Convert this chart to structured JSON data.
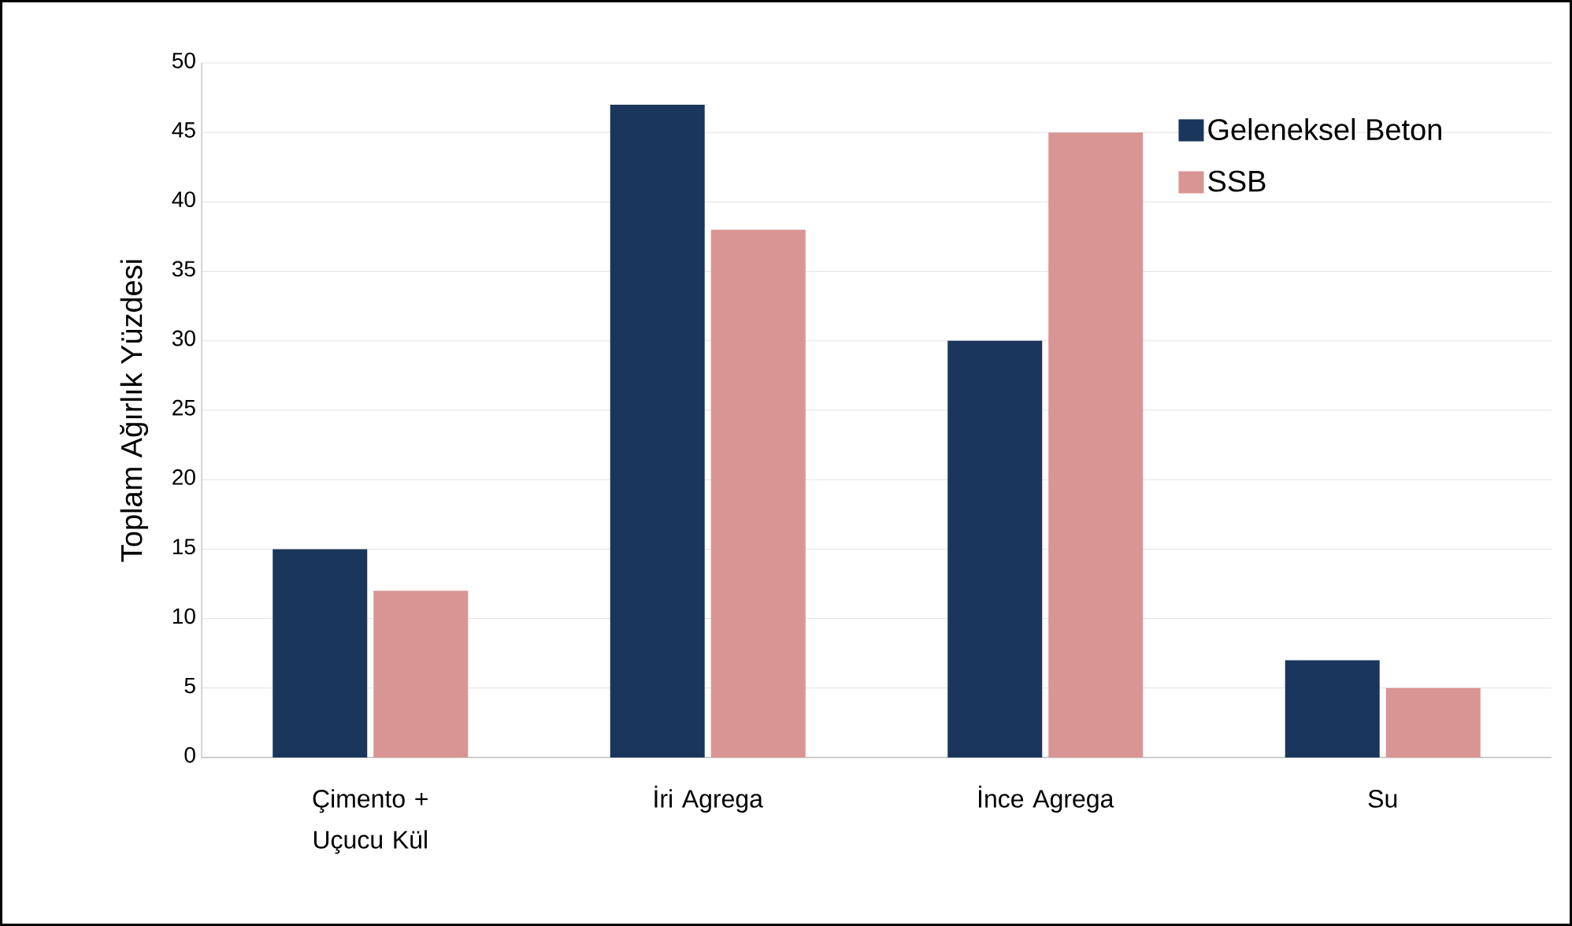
{
  "chart_data": {
    "type": "bar",
    "ylabel": "Toplam Ağırlık Yüzdesi",
    "categories": [
      "Çimento + Uçucu Kül",
      "İri Agrega",
      "İnce Agrega",
      "Su"
    ],
    "series": [
      {
        "name": "Geleneksel Beton",
        "color": "#1b365d",
        "values": [
          15,
          47,
          30,
          7
        ]
      },
      {
        "name": "SSB",
        "color": "#d99594",
        "values": [
          12,
          38,
          45,
          5
        ]
      }
    ],
    "ylim": [
      0,
      50
    ],
    "yticks": [
      0,
      5,
      10,
      15,
      20,
      25,
      30,
      35,
      40,
      45,
      50
    ],
    "grid": "y",
    "legend": "top right"
  }
}
